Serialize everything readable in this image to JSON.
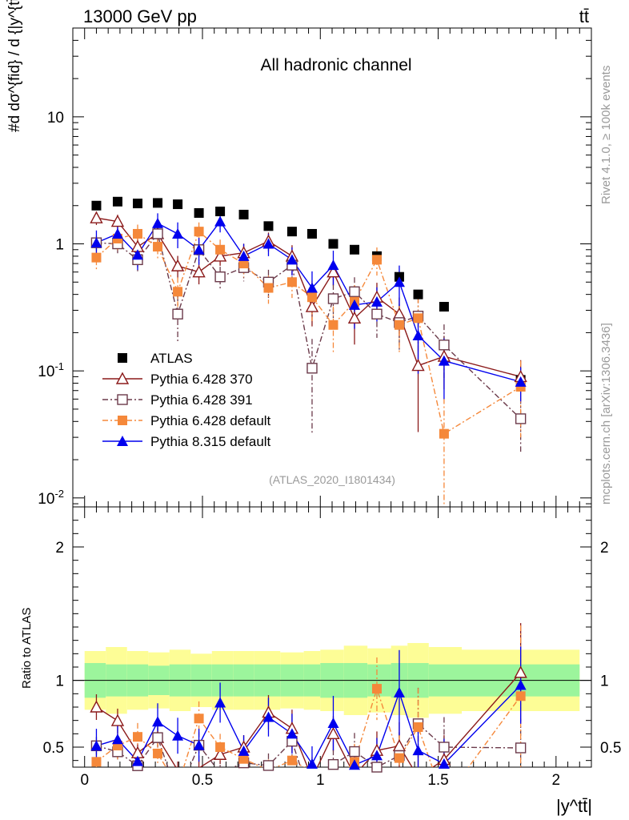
{
  "header": {
    "process": "13000 GeV pp",
    "label": "tt̄"
  },
  "side_labels": {
    "rivet": "Rivet 4.1.0, ≥ 100k events",
    "mcplots": "mcplots.cern.ch [arXiv:1306.3436]"
  },
  "chart_data": {
    "type": "scatter",
    "title": "All hadronic channel",
    "watermark": "(ATLAS_2020_I1801434)",
    "xlabel": "|y^tt̄|",
    "ylabel": "#d dσ^{fid} / d {|y^{tt̄}|} [pb]",
    "ratio_ylabel": "Ratio to ATLAS",
    "xlim": [
      -0.05,
      2.15
    ],
    "ylim": [
      0.0085,
      50
    ],
    "yscale": "log",
    "ratio_ylim": [
      0.35,
      2.3
    ],
    "x_ticks": [
      "0",
      "0.5",
      "1",
      "1.5",
      "2"
    ],
    "x_tick_values": [
      0,
      0.5,
      1,
      1.5,
      2
    ],
    "y_tick_labels": [
      "10^{-2}",
      "10^{-1}",
      "1",
      "10"
    ],
    "ratio_ticks": [
      "0.5",
      "1",
      "2"
    ],
    "ratio_tick_values": [
      0.5,
      1,
      2
    ],
    "bins": [
      [
        0,
        0.09
      ],
      [
        0.09,
        0.18
      ],
      [
        0.18,
        0.27
      ],
      [
        0.27,
        0.36
      ],
      [
        0.36,
        0.45
      ],
      [
        0.45,
        0.54
      ],
      [
        0.54,
        0.63
      ],
      [
        0.63,
        0.72
      ],
      [
        0.72,
        0.83
      ],
      [
        0.83,
        0.93
      ],
      [
        0.93,
        1.0
      ],
      [
        1.0,
        1.1
      ],
      [
        1.1,
        1.2
      ],
      [
        1.2,
        1.3
      ],
      [
        1.3,
        1.37
      ],
      [
        1.37,
        1.46
      ],
      [
        1.46,
        1.6
      ],
      [
        1.6,
        2.1
      ]
    ],
    "data_x": [
      0.05,
      0.14,
      0.225,
      0.31,
      0.395,
      0.485,
      0.575,
      0.675,
      0.78,
      0.88,
      0.965,
      1.055,
      1.145,
      1.24,
      1.335,
      1.415,
      1.525,
      1.85
    ],
    "band_inner": [
      0.13,
      0.12,
      0.12,
      0.11,
      0.12,
      0.12,
      0.12,
      0.12,
      0.12,
      0.12,
      0.12,
      0.13,
      0.13,
      0.12,
      0.13,
      0.13,
      0.12,
      0.12
    ],
    "band_outer": [
      0.22,
      0.25,
      0.22,
      0.21,
      0.23,
      0.2,
      0.22,
      0.22,
      0.22,
      0.21,
      0.22,
      0.23,
      0.26,
      0.24,
      0.26,
      0.28,
      0.25,
      0.23
    ],
    "series": [
      {
        "name": "ATLAS",
        "color": "#000000",
        "marker": "square-filled",
        "x": [
          0.05,
          0.14,
          0.225,
          0.31,
          0.395,
          0.485,
          0.575,
          0.675,
          0.78,
          0.88,
          0.965,
          1.055,
          1.145,
          1.24,
          1.335,
          1.415,
          1.525,
          1.85
        ],
        "values": [
          2.0,
          2.15,
          2.08,
          2.1,
          2.05,
          1.75,
          1.8,
          1.7,
          1.38,
          1.25,
          1.2,
          1.0,
          0.9,
          0.8,
          0.55,
          0.4,
          0.32,
          0.085
        ],
        "err_rel": [
          0,
          0,
          0,
          0,
          0,
          0,
          0,
          0,
          0,
          0,
          0,
          0,
          0,
          0,
          0,
          0,
          0,
          0
        ]
      },
      {
        "name": "Pythia 6.428 370",
        "color": "#8b1a1a",
        "marker": "triangle-open",
        "line": "solid",
        "x": [
          0.05,
          0.14,
          0.225,
          0.31,
          0.395,
          0.485,
          0.575,
          0.675,
          0.78,
          0.88,
          0.965,
          1.055,
          1.145,
          1.24,
          1.335,
          1.415,
          1.525,
          1.85
        ],
        "values": [
          1.6,
          1.5,
          0.95,
          1.2,
          0.67,
          0.6,
          0.8,
          0.85,
          1.05,
          0.8,
          0.32,
          0.6,
          0.26,
          0.38,
          0.28,
          0.11,
          0.13,
          0.09
        ],
        "err_rel": [
          0.12,
          0.13,
          0.15,
          0.13,
          0.2,
          0.2,
          0.16,
          0.18,
          0.17,
          0.22,
          0.3,
          0.22,
          0.38,
          0.3,
          0.35,
          0.7,
          0.45,
          0.35
        ]
      },
      {
        "name": "Pythia 6.428 391",
        "color": "#6b3a4a",
        "marker": "square-open",
        "line": "dashdot",
        "x": [
          0.05,
          0.14,
          0.225,
          0.31,
          0.395,
          0.485,
          0.575,
          0.675,
          0.78,
          0.88,
          0.965,
          1.055,
          1.145,
          1.24,
          1.335,
          1.415,
          1.525,
          1.85
        ],
        "values": [
          1.02,
          1.0,
          0.75,
          1.2,
          0.28,
          0.9,
          0.55,
          0.65,
          0.5,
          0.68,
          0.105,
          0.37,
          0.42,
          0.28,
          0.24,
          0.27,
          0.16,
          0.042
        ],
        "err_rel": [
          0.13,
          0.16,
          0.2,
          0.17,
          0.4,
          0.2,
          0.2,
          0.22,
          0.25,
          0.26,
          0.7,
          0.3,
          0.3,
          0.35,
          0.4,
          0.4,
          0.45,
          0.45
        ]
      },
      {
        "name": "Pythia 6.428 default",
        "color": "#f5883a",
        "marker": "square-filled",
        "line": "dashdot",
        "x": [
          0.05,
          0.14,
          0.225,
          0.31,
          0.395,
          0.485,
          0.575,
          0.675,
          0.78,
          0.88,
          0.965,
          1.055,
          1.145,
          1.24,
          1.335,
          1.415,
          1.525,
          1.85
        ],
        "values": [
          0.78,
          1.1,
          1.2,
          0.95,
          0.42,
          1.25,
          0.9,
          0.7,
          0.45,
          0.5,
          0.38,
          0.23,
          0.35,
          0.75,
          0.23,
          0.26,
          0.032,
          0.075
        ],
        "err_rel": [
          0.2,
          0.2,
          0.18,
          0.2,
          0.3,
          0.18,
          0.2,
          0.22,
          0.25,
          0.25,
          0.35,
          0.4,
          0.35,
          0.25,
          0.4,
          0.45,
          0.9,
          0.6
        ]
      },
      {
        "name": "Pythia 8.315 default",
        "color": "#0000ee",
        "marker": "triangle-filled",
        "line": "solid",
        "x": [
          0.05,
          0.14,
          0.225,
          0.31,
          0.395,
          0.485,
          0.575,
          0.675,
          0.78,
          0.88,
          0.965,
          1.055,
          1.145,
          1.24,
          1.335,
          1.415,
          1.525,
          1.85
        ],
        "values": [
          1.02,
          1.2,
          0.82,
          1.45,
          1.2,
          0.9,
          1.5,
          0.8,
          1.0,
          0.75,
          0.45,
          0.68,
          0.33,
          0.35,
          0.5,
          0.19,
          0.12,
          0.082
        ],
        "err_rel": [
          0.25,
          0.2,
          0.24,
          0.2,
          0.23,
          0.24,
          0.18,
          0.25,
          0.2,
          0.25,
          0.35,
          0.3,
          0.35,
          0.3,
          0.35,
          0.5,
          0.5,
          0.3
        ]
      }
    ]
  }
}
